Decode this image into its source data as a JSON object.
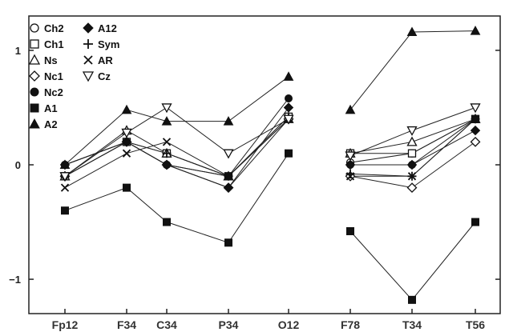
{
  "chart_data": {
    "type": "line",
    "categories": [
      "Fp12",
      "F34",
      "C34",
      "P34",
      "O12",
      "F78",
      "T34",
      "T56"
    ],
    "segments": [
      [
        0,
        4
      ],
      [
        5,
        7
      ]
    ],
    "ylim": [
      -1.3,
      1.3
    ],
    "yticks": [
      {
        "value": 1,
        "label": "1"
      },
      {
        "value": 0,
        "label": "0"
      },
      {
        "value": -1,
        "label": "−1"
      }
    ],
    "grid": false,
    "legend_position": "top-left",
    "series": [
      {
        "name": "Ch2",
        "marker": "circle-open",
        "values": [
          0.0,
          0.2,
          0.0,
          -0.1,
          0.4,
          0.02,
          0.1,
          0.4
        ]
      },
      {
        "name": "Ch1",
        "marker": "square-open",
        "values": [
          -0.1,
          0.2,
          0.1,
          -0.1,
          0.42,
          0.1,
          0.1,
          0.4
        ]
      },
      {
        "name": "Ns",
        "marker": "triangle-open",
        "values": [
          -0.1,
          0.3,
          0.1,
          -0.1,
          0.4,
          0.1,
          0.2,
          0.4
        ]
      },
      {
        "name": "Nc1",
        "marker": "diamond-open",
        "values": [
          -0.1,
          0.2,
          0.0,
          -0.2,
          0.4,
          -0.1,
          -0.2,
          0.2
        ]
      },
      {
        "name": "Nc2",
        "marker": "circle-filled",
        "values": [
          0.0,
          0.2,
          0.0,
          -0.1,
          0.58,
          0.0,
          0.0,
          0.4
        ]
      },
      {
        "name": "A1",
        "marker": "square-filled",
        "values": [
          -0.4,
          -0.2,
          -0.5,
          -0.68,
          0.1,
          -0.58,
          -1.18,
          -0.5
        ]
      },
      {
        "name": "A2",
        "marker": "triangle-filled",
        "values": [
          0.0,
          0.48,
          0.38,
          0.38,
          0.77,
          0.48,
          1.16,
          1.17
        ]
      },
      {
        "name": "A12",
        "marker": "diamond-filled",
        "values": [
          0.0,
          0.2,
          0.0,
          -0.2,
          0.5,
          0.0,
          0.0,
          0.3
        ]
      },
      {
        "name": "Sym",
        "marker": "plus",
        "values": [
          -0.1,
          0.2,
          0.1,
          -0.1,
          0.42,
          -0.08,
          -0.1,
          0.4
        ]
      },
      {
        "name": "AR",
        "marker": "x",
        "values": [
          -0.2,
          0.1,
          0.2,
          -0.1,
          0.4,
          -0.1,
          -0.1,
          0.4
        ]
      },
      {
        "name": "Cz",
        "marker": "triangle-down-open",
        "values": [
          -0.1,
          0.28,
          0.5,
          0.1,
          0.4,
          0.08,
          0.3,
          0.5
        ]
      }
    ]
  },
  "colors": {
    "line": "#222222",
    "marker": "#111111",
    "axis": "#222222",
    "background": "#ffffff"
  }
}
